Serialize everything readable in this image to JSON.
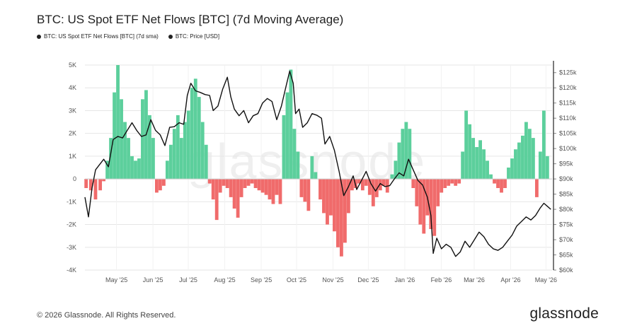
{
  "title": "BTC: US Spot ETF Net Flows [BTC] (7d Moving Average)",
  "legend": [
    {
      "label": "BTC: US Spot ETF Net Flows [BTC] (7d sma)",
      "color": "#222222"
    },
    {
      "label": "BTC: Price [USD]",
      "color": "#222222"
    }
  ],
  "footer": {
    "copyright": "© 2026 Glassnode. All Rights Reserved.",
    "logo": "glassnode"
  },
  "watermark": "glassnode",
  "colors": {
    "positive": "#5ccf9c",
    "negative": "#f06b6b",
    "price": "#111111",
    "grid": "#e6e6e6"
  },
  "chart_data": {
    "type": "bar",
    "x_range": [
      "2025-04-15",
      "2026-05-17"
    ],
    "x_ticks": [
      {
        "label": "May '25",
        "date": "2025-05-01"
      },
      {
        "label": "Jun '25",
        "date": "2025-06-01"
      },
      {
        "label": "Jul '25",
        "date": "2025-07-01"
      },
      {
        "label": "Aug '25",
        "date": "2025-08-01"
      },
      {
        "label": "Sep '25",
        "date": "2025-09-01"
      },
      {
        "label": "Oct '25",
        "date": "2025-10-01"
      },
      {
        "label": "Nov '25",
        "date": "2025-11-01"
      },
      {
        "label": "Dec '25",
        "date": "2025-12-01"
      },
      {
        "label": "Jan '26",
        "date": "2026-01-01"
      },
      {
        "label": "Feb '26",
        "date": "2026-02-01"
      },
      {
        "label": "Mar '26",
        "date": "2026-03-01"
      },
      {
        "label": "Apr '26",
        "date": "2026-04-01"
      },
      {
        "label": "May '26",
        "date": "2026-05-01"
      }
    ],
    "y_left": {
      "min": -4000,
      "max": 5000,
      "ticks": [
        {
          "v": 5000,
          "label": "5K"
        },
        {
          "v": 4000,
          "label": "4K"
        },
        {
          "v": 3000,
          "label": "3K"
        },
        {
          "v": 2000,
          "label": "2K"
        },
        {
          "v": 1000,
          "label": "1K"
        },
        {
          "v": 0,
          "label": "0"
        },
        {
          "v": -1000,
          "label": "-1K"
        },
        {
          "v": -2000,
          "label": "-2K"
        },
        {
          "v": -3000,
          "label": "-3K"
        },
        {
          "v": -4000,
          "label": "-4K"
        }
      ]
    },
    "y_right": {
      "min": 60000,
      "max": 127500,
      "ticks": [
        {
          "v": 125000,
          "label": "$125k"
        },
        {
          "v": 120000,
          "label": "$120k"
        },
        {
          "v": 115000,
          "label": "$115k"
        },
        {
          "v": 110000,
          "label": "$110k"
        },
        {
          "v": 105000,
          "label": "$105k"
        },
        {
          "v": 100000,
          "label": "$100k"
        },
        {
          "v": 95000,
          "label": "$95k"
        },
        {
          "v": 90000,
          "label": "$90k"
        },
        {
          "v": 85000,
          "label": "$85k"
        },
        {
          "v": 80000,
          "label": "$80k"
        },
        {
          "v": 75000,
          "label": "$75k"
        },
        {
          "v": 70000,
          "label": "$70k"
        },
        {
          "v": 65000,
          "label": "$65k"
        },
        {
          "v": 60000,
          "label": "$60k"
        }
      ]
    },
    "grid": true,
    "series": [
      {
        "name": "BTC: US Spot ETF Net Flows [BTC] (7d sma)",
        "type": "bar",
        "points": [
          [
            "2025-04-16",
            -400
          ],
          [
            "2025-04-20",
            -500
          ],
          [
            "2025-04-24",
            -900
          ],
          [
            "2025-04-28",
            -500
          ],
          [
            "2025-05-01",
            -100
          ],
          [
            "2025-05-04",
            800
          ],
          [
            "2025-05-07",
            1800
          ],
          [
            "2025-05-10",
            3800
          ],
          [
            "2025-05-13",
            5000
          ],
          [
            "2025-05-16",
            3500
          ],
          [
            "2025-05-19",
            2500
          ],
          [
            "2025-05-22",
            1800
          ],
          [
            "2025-05-25",
            1000
          ],
          [
            "2025-05-28",
            800
          ],
          [
            "2025-05-31",
            900
          ],
          [
            "2025-06-03",
            3500
          ],
          [
            "2025-06-06",
            3900
          ],
          [
            "2025-06-09",
            2800
          ],
          [
            "2025-06-12",
            1800
          ],
          [
            "2025-06-15",
            -600
          ],
          [
            "2025-06-18",
            -500
          ],
          [
            "2025-06-21",
            -300
          ],
          [
            "2025-06-24",
            800
          ],
          [
            "2025-06-27",
            1500
          ],
          [
            "2025-06-30",
            2200
          ],
          [
            "2025-07-03",
            2800
          ],
          [
            "2025-07-06",
            1800
          ],
          [
            "2025-07-09",
            2500
          ],
          [
            "2025-07-12",
            3000
          ],
          [
            "2025-07-15",
            4000
          ],
          [
            "2025-07-18",
            4400
          ],
          [
            "2025-07-21",
            3600
          ],
          [
            "2025-07-24",
            2500
          ],
          [
            "2025-07-27",
            1500
          ],
          [
            "2025-07-30",
            -200
          ],
          [
            "2025-08-02",
            -900
          ],
          [
            "2025-08-05",
            -1800
          ],
          [
            "2025-08-08",
            -600
          ],
          [
            "2025-08-11",
            -300
          ],
          [
            "2025-08-14",
            -400
          ],
          [
            "2025-08-17",
            -800
          ],
          [
            "2025-08-20",
            -1300
          ],
          [
            "2025-08-23",
            -1700
          ],
          [
            "2025-08-26",
            -800
          ],
          [
            "2025-08-29",
            -400
          ],
          [
            "2025-09-01",
            -300
          ],
          [
            "2025-09-04",
            -200
          ],
          [
            "2025-09-07",
            -400
          ],
          [
            "2025-09-10",
            -500
          ],
          [
            "2025-09-13",
            -600
          ],
          [
            "2025-09-16",
            -700
          ],
          [
            "2025-09-19",
            -900
          ],
          [
            "2025-09-22",
            -1100
          ],
          [
            "2025-09-25",
            -700
          ],
          [
            "2025-09-28",
            -1100
          ],
          [
            "2025-10-01",
            2800
          ],
          [
            "2025-10-04",
            3800
          ],
          [
            "2025-10-07",
            4800
          ],
          [
            "2025-10-10",
            2200
          ],
          [
            "2025-10-13",
            1200
          ],
          [
            "2025-10-16",
            -800
          ],
          [
            "2025-10-19",
            -1000
          ],
          [
            "2025-10-22",
            -1400
          ],
          [
            "2025-10-25",
            1000
          ],
          [
            "2025-10-28",
            300
          ],
          [
            "2025-11-01",
            -900
          ],
          [
            "2025-11-04",
            -1500
          ],
          [
            "2025-11-07",
            -2000
          ],
          [
            "2025-11-10",
            -1600
          ],
          [
            "2025-11-13",
            -2300
          ],
          [
            "2025-11-16",
            -3000
          ],
          [
            "2025-11-19",
            -3400
          ],
          [
            "2025-11-22",
            -2800
          ],
          [
            "2025-11-25",
            -1500
          ],
          [
            "2025-11-28",
            -500
          ],
          [
            "2025-12-01",
            -400
          ],
          [
            "2025-12-04",
            -200
          ],
          [
            "2025-12-07",
            -500
          ],
          [
            "2025-12-10",
            -300
          ],
          [
            "2025-12-13",
            -700
          ],
          [
            "2025-12-16",
            -1200
          ],
          [
            "2025-12-19",
            -800
          ],
          [
            "2025-12-22",
            -500
          ],
          [
            "2025-12-25",
            -300
          ],
          [
            "2025-12-28",
            -600
          ],
          [
            "2026-01-01",
            200
          ],
          [
            "2026-01-04",
            800
          ],
          [
            "2026-01-07",
            1600
          ],
          [
            "2026-01-10",
            2200
          ],
          [
            "2026-01-13",
            2500
          ],
          [
            "2026-01-16",
            2200
          ],
          [
            "2026-01-19",
            -400
          ],
          [
            "2026-01-22",
            -1200
          ],
          [
            "2026-01-25",
            -2000
          ],
          [
            "2026-01-28",
            -2400
          ],
          [
            "2026-01-31",
            -1600
          ],
          [
            "2026-02-03",
            -2200
          ],
          [
            "2026-02-06",
            -2500
          ],
          [
            "2026-02-09",
            -1200
          ],
          [
            "2026-02-12",
            -600
          ],
          [
            "2026-02-15",
            -400
          ],
          [
            "2026-02-18",
            -300
          ],
          [
            "2026-02-21",
            -200
          ],
          [
            "2026-02-24",
            -300
          ],
          [
            "2026-02-27",
            -200
          ],
          [
            "2026-03-02",
            1200
          ],
          [
            "2026-03-05",
            3000
          ],
          [
            "2026-03-08",
            2400
          ],
          [
            "2026-03-11",
            1800
          ],
          [
            "2026-03-14",
            1400
          ],
          [
            "2026-03-17",
            1700
          ],
          [
            "2026-03-20",
            1300
          ],
          [
            "2026-03-23",
            800
          ],
          [
            "2026-03-26",
            200
          ],
          [
            "2026-03-29",
            -200
          ],
          [
            "2026-04-01",
            -400
          ],
          [
            "2026-04-04",
            -600
          ],
          [
            "2026-04-07",
            -400
          ],
          [
            "2026-04-10",
            500
          ],
          [
            "2026-04-13",
            900
          ],
          [
            "2026-04-16",
            1300
          ],
          [
            "2026-04-19",
            1600
          ],
          [
            "2026-04-22",
            1900
          ],
          [
            "2026-04-25",
            2500
          ],
          [
            "2026-04-28",
            2200
          ],
          [
            "2026-05-01",
            1800
          ],
          [
            "2026-05-04",
            -800
          ],
          [
            "2026-05-07",
            1200
          ],
          [
            "2026-05-10",
            3000
          ],
          [
            "2026-05-13",
            1000
          ]
        ]
      },
      {
        "name": "BTC: Price [USD]",
        "type": "line",
        "points": [
          [
            "2025-04-15",
            84000
          ],
          [
            "2025-04-18",
            77500
          ],
          [
            "2025-04-21",
            87000
          ],
          [
            "2025-04-24",
            93000
          ],
          [
            "2025-04-27",
            94500
          ],
          [
            "2025-05-01",
            96500
          ],
          [
            "2025-05-05",
            94000
          ],
          [
            "2025-05-09",
            103000
          ],
          [
            "2025-05-13",
            104000
          ],
          [
            "2025-05-17",
            103500
          ],
          [
            "2025-05-21",
            106000
          ],
          [
            "2025-05-25",
            108500
          ],
          [
            "2025-05-29",
            106000
          ],
          [
            "2025-06-02",
            104000
          ],
          [
            "2025-06-06",
            104500
          ],
          [
            "2025-06-10",
            109500
          ],
          [
            "2025-06-14",
            106000
          ],
          [
            "2025-06-18",
            104500
          ],
          [
            "2025-06-22",
            101000
          ],
          [
            "2025-06-26",
            107000
          ],
          [
            "2025-06-30",
            107200
          ],
          [
            "2025-07-04",
            108500
          ],
          [
            "2025-07-08",
            108000
          ],
          [
            "2025-07-11",
            117500
          ],
          [
            "2025-07-14",
            121500
          ],
          [
            "2025-07-18",
            119000
          ],
          [
            "2025-07-22",
            118500
          ],
          [
            "2025-07-26",
            117800
          ],
          [
            "2025-07-30",
            117500
          ],
          [
            "2025-08-02",
            112500
          ],
          [
            "2025-08-06",
            114000
          ],
          [
            "2025-08-10",
            119500
          ],
          [
            "2025-08-14",
            123500
          ],
          [
            "2025-08-17",
            117000
          ],
          [
            "2025-08-20",
            113000
          ],
          [
            "2025-08-24",
            110800
          ],
          [
            "2025-08-28",
            112500
          ],
          [
            "2025-09-01",
            108500
          ],
          [
            "2025-09-05",
            110800
          ],
          [
            "2025-09-09",
            111500
          ],
          [
            "2025-09-13",
            115000
          ],
          [
            "2025-09-17",
            116500
          ],
          [
            "2025-09-21",
            115500
          ],
          [
            "2025-09-25",
            109500
          ],
          [
            "2025-09-29",
            114000
          ],
          [
            "2025-10-02",
            119000
          ],
          [
            "2025-10-06",
            125500
          ],
          [
            "2025-10-09",
            121500
          ],
          [
            "2025-10-11",
            111500
          ],
          [
            "2025-10-14",
            113000
          ],
          [
            "2025-10-17",
            107000
          ],
          [
            "2025-10-21",
            108500
          ],
          [
            "2025-10-25",
            111500
          ],
          [
            "2025-10-29",
            111000
          ],
          [
            "2025-11-02",
            110000
          ],
          [
            "2025-11-05",
            101500
          ],
          [
            "2025-11-09",
            104000
          ],
          [
            "2025-11-13",
            99500
          ],
          [
            "2025-11-17",
            92500
          ],
          [
            "2025-11-21",
            84500
          ],
          [
            "2025-11-25",
            87500
          ],
          [
            "2025-11-29",
            91000
          ],
          [
            "2025-12-02",
            86500
          ],
          [
            "2025-12-06",
            89500
          ],
          [
            "2025-12-10",
            92500
          ],
          [
            "2025-12-14",
            88500
          ],
          [
            "2025-12-18",
            86000
          ],
          [
            "2025-12-22",
            88500
          ],
          [
            "2025-12-26",
            87500
          ],
          [
            "2025-12-30",
            87800
          ],
          [
            "2026-01-03",
            90000
          ],
          [
            "2026-01-07",
            92000
          ],
          [
            "2026-01-11",
            91000
          ],
          [
            "2026-01-15",
            96500
          ],
          [
            "2026-01-19",
            93000
          ],
          [
            "2026-01-23",
            89500
          ],
          [
            "2026-01-27",
            88000
          ],
          [
            "2026-01-31",
            84000
          ],
          [
            "2026-02-03",
            78000
          ],
          [
            "2026-02-05",
            65500
          ],
          [
            "2026-02-08",
            70500
          ],
          [
            "2026-02-12",
            67000
          ],
          [
            "2026-02-16",
            68500
          ],
          [
            "2026-02-20",
            67500
          ],
          [
            "2026-02-24",
            64500
          ],
          [
            "2026-02-28",
            66000
          ],
          [
            "2026-03-04",
            69500
          ],
          [
            "2026-03-08",
            67500
          ],
          [
            "2026-03-12",
            70000
          ],
          [
            "2026-03-16",
            72500
          ],
          [
            "2026-03-20",
            71000
          ],
          [
            "2026-03-24",
            68500
          ],
          [
            "2026-03-28",
            67000
          ],
          [
            "2026-04-01",
            66500
          ],
          [
            "2026-04-05",
            67500
          ],
          [
            "2026-04-09",
            69500
          ],
          [
            "2026-04-13",
            71500
          ],
          [
            "2026-04-17",
            74500
          ],
          [
            "2026-04-21",
            76000
          ],
          [
            "2026-04-25",
            77500
          ],
          [
            "2026-04-29",
            76500
          ],
          [
            "2026-05-03",
            78000
          ],
          [
            "2026-05-07",
            80500
          ],
          [
            "2026-05-10",
            82000
          ],
          [
            "2026-05-13",
            81000
          ],
          [
            "2026-05-16",
            80000
          ]
        ]
      }
    ]
  }
}
